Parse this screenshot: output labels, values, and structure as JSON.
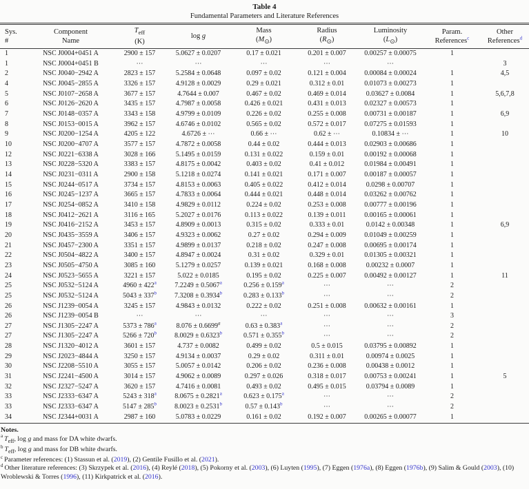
{
  "title": "Table 4",
  "subtitle": "Fundamental Parameters and Literature References",
  "header": {
    "cols": [
      {
        "l1": "Sys.",
        "l2": "#"
      },
      {
        "l1": "Component",
        "l2": "Name"
      },
      {
        "l1": "{Teff}",
        "l2": "(K)"
      },
      {
        "l1": "log {g}",
        "l2": ""
      },
      {
        "l1": "Mass",
        "l2": "({Msun})"
      },
      {
        "l1": "Radius",
        "l2": "({Rsun})"
      },
      {
        "l1": "Luminosity",
        "l2": "({Lsun})"
      },
      {
        "l1": "Param.",
        "l2": "References^c"
      },
      {
        "l1": "Other",
        "l2": "References^d"
      }
    ]
  },
  "rows": [
    [
      "1",
      "NSC J0004+0451 A",
      "2900 ± 157",
      "5.0627 ± 0.0207",
      "0.17 ± 0.021",
      "0.201 ± 0.007",
      "0.00257 ± 0.00075",
      "1",
      ""
    ],
    [
      "1",
      "NSC J0004+0451 B",
      "⋯",
      "⋯",
      "⋯",
      "⋯",
      "⋯",
      "",
      "3"
    ],
    [
      "2",
      "NSC J0040−2942 A",
      "2823 ± 157",
      "5.2584 ± 0.0648",
      "0.097 ± 0.02",
      "0.121 ± 0.004",
      "0.00084 ± 0.00024",
      "1",
      "4,5"
    ],
    [
      "4",
      "NSC J0045−2855 A",
      "3326 ± 157",
      "4.9128 ± 0.0029",
      "0.29 ± 0.021",
      "0.312 ± 0.01",
      "0.01073 ± 0.00273",
      "1",
      ""
    ],
    [
      "5",
      "NSC J0107−2658 A",
      "3677 ± 157",
      "4.7644 ± 0.007",
      "0.467 ± 0.02",
      "0.469 ± 0.014",
      "0.03627 ± 0.0084",
      "1",
      "5,6,7,8"
    ],
    [
      "6",
      "NSC J0126−2620 A",
      "3435 ± 157",
      "4.7987 ± 0.0058",
      "0.426 ± 0.021",
      "0.431 ± 0.013",
      "0.02327 ± 0.00573",
      "1",
      ""
    ],
    [
      "7",
      "NSC J0148−0357 A",
      "3343 ± 158",
      "4.9799 ± 0.0109",
      "0.226 ± 0.02",
      "0.255 ± 0.008",
      "0.00731 ± 0.00187",
      "1",
      "6,9"
    ],
    [
      "8",
      "NSC J0153−0015 A",
      "3962 ± 157",
      "4.6746 ± 0.0102",
      "0.565 ± 0.02",
      "0.572 ± 0.017",
      "0.07275 ± 0.01593",
      "1",
      ""
    ],
    [
      "9",
      "NSC J0200−1254 A",
      "4205 ± 122",
      "4.6726 ± ⋯",
      "0.66 ± ⋯",
      "0.62 ± ⋯",
      "0.10834 ± ⋯",
      "1",
      "10"
    ],
    [
      "10",
      "NSC J0200−4707 A",
      "3577 ± 157",
      "4.7872 ± 0.0058",
      "0.44 ± 0.02",
      "0.444 ± 0.013",
      "0.02903 ± 0.00686",
      "1",
      ""
    ],
    [
      "12",
      "NSC J0221−6338 A",
      "3028 ± 166",
      "5.1495 ± 0.0159",
      "0.131 ± 0.022",
      "0.159 ± 0.01",
      "0.00192 ± 0.00068",
      "1",
      ""
    ],
    [
      "13",
      "NSC J0228−5320 A",
      "3383 ± 157",
      "4.8175 ± 0.0042",
      "0.403 ± 0.02",
      "0.41 ± 0.012",
      "0.01984 ± 0.00491",
      "1",
      ""
    ],
    [
      "14",
      "NSC J0231−0311 A",
      "2900 ± 158",
      "5.1218 ± 0.0274",
      "0.141 ± 0.021",
      "0.171 ± 0.007",
      "0.00187 ± 0.00057",
      "1",
      ""
    ],
    [
      "15",
      "NSC J0244−0517 A",
      "3734 ± 157",
      "4.8153 ± 0.0063",
      "0.405 ± 0.022",
      "0.412 ± 0.014",
      "0.0298 ± 0.00707",
      "1",
      ""
    ],
    [
      "16",
      "NSC J0245−1237 A",
      "3665 ± 157",
      "4.7833 ± 0.0064",
      "0.444 ± 0.021",
      "0.448 ± 0.014",
      "0.03262 ± 0.00762",
      "1",
      ""
    ],
    [
      "17",
      "NSC J0254−0852 A",
      "3410 ± 158",
      "4.9829 ± 0.0112",
      "0.224 ± 0.02",
      "0.253 ± 0.008",
      "0.00777 ± 0.00196",
      "1",
      ""
    ],
    [
      "18",
      "NSC J0412−2621 A",
      "3116 ± 165",
      "5.2027 ± 0.0176",
      "0.113 ± 0.022",
      "0.139 ± 0.011",
      "0.00165 ± 0.00061",
      "1",
      ""
    ],
    [
      "19",
      "NSC J0416−2152 A",
      "3453 ± 157",
      "4.8909 ± 0.0013",
      "0.315 ± 0.02",
      "0.333 ± 0.01",
      "0.0142 ± 0.00348",
      "1",
      "6,9"
    ],
    [
      "20",
      "NSC J0435−3559 A",
      "3406 ± 157",
      "4.9323 ± 0.0062",
      "0.27 ± 0.02",
      "0.294 ± 0.009",
      "0.01049 ± 0.00259",
      "1",
      ""
    ],
    [
      "21",
      "NSC J0457−2300 A",
      "3351 ± 157",
      "4.9899 ± 0.0137",
      "0.218 ± 0.02",
      "0.247 ± 0.008",
      "0.00695 ± 0.00174",
      "1",
      ""
    ],
    [
      "22",
      "NSC J0504−4822 A",
      "3400 ± 157",
      "4.8947 ± 0.0024",
      "0.31 ± 0.02",
      "0.329 ± 0.01",
      "0.01305 ± 0.00321",
      "1",
      ""
    ],
    [
      "23",
      "NSC J0505−4750 A",
      "3085 ± 160",
      "5.1279 ± 0.0257",
      "0.139 ± 0.021",
      "0.168 ± 0.008",
      "0.00232 ± 0.0007",
      "1",
      ""
    ],
    [
      "24",
      "NSC J0523−5655 A",
      "3221 ± 157",
      "5.022 ± 0.0185",
      "0.195 ± 0.02",
      "0.225 ± 0.007",
      "0.00492 ± 0.00127",
      "1",
      "11"
    ],
    [
      "25",
      "NSC J0532−5124 A",
      "4960 ± 422^a",
      "7.2249 ± 0.5067^a",
      "0.256 ± 0.159^a",
      "⋯",
      "⋯",
      "2",
      ""
    ],
    [
      "25",
      "NSC J0532−5124 A",
      "5043 ± 337^b",
      "7.3208 ± 0.3934^b",
      "0.283 ± 0.133^b",
      "⋯",
      "⋯",
      "2",
      ""
    ],
    [
      "26",
      "NSC J1239−0054 A",
      "3245 ± 157",
      "4.9843 ± 0.0132",
      "0.222 ± 0.02",
      "0.251 ± 0.008",
      "0.00632 ± 0.00161",
      "1",
      ""
    ],
    [
      "26",
      "NSC J1239−0054 B",
      "⋯",
      "⋯",
      "⋯",
      "⋯",
      "⋯",
      "3",
      ""
    ],
    [
      "27",
      "NSC J1305−2247 A",
      "5373 ± 786^a",
      "8.076 ± 0.6699^!a",
      "0.63 ± 0.383^a",
      "⋯",
      "⋯",
      "2",
      ""
    ],
    [
      "27",
      "NSC J1305−2247 A",
      "5266 ± 720^b",
      "8.0029 ± 0.6323^b",
      "0.571 ± 0.355^b",
      "⋯",
      "⋯",
      "2",
      ""
    ],
    [
      "28",
      "NSC J1320−4012 A",
      "3601 ± 157",
      "4.737 ± 0.0082",
      "0.499 ± 0.02",
      "0.5 ± 0.015",
      "0.03795 ± 0.00892",
      "1",
      ""
    ],
    [
      "29",
      "NSC J2023−4844 A",
      "3250 ± 157",
      "4.9134 ± 0.0037",
      "0.29 ± 0.02",
      "0.311 ± 0.01",
      "0.00974 ± 0.0025",
      "1",
      ""
    ],
    [
      "30",
      "NSC J2208−5510 A",
      "3055 ± 157",
      "5.0057 ± 0.0142",
      "0.206 ± 0.02",
      "0.236 ± 0.008",
      "0.00438 ± 0.0012",
      "1",
      ""
    ],
    [
      "31",
      "NSC J2241−4500 A",
      "3014 ± 157",
      "4.9062 ± 0.0089",
      "0.297 ± 0.026",
      "0.318 ± 0.017",
      "0.00753 ± 0.00241",
      "1",
      "5"
    ],
    [
      "32",
      "NSC J2327−5247 A",
      "3620 ± 157",
      "4.7416 ± 0.0081",
      "0.493 ± 0.02",
      "0.495 ± 0.015",
      "0.03794 ± 0.0089",
      "1",
      ""
    ],
    [
      "33",
      "NSC J2333−6347 A",
      "5243 ± 318^a",
      "8.0675 ± 0.2821^a",
      "0.623 ± 0.175^a",
      "⋯",
      "⋯",
      "2",
      ""
    ],
    [
      "33",
      "NSC J2333−6347 A",
      "5147 ± 285^b",
      "8.0023 ± 0.2531^b",
      "0.57 ± 0.143^b",
      "⋯",
      "⋯",
      "2",
      ""
    ],
    [
      "34",
      "NSC J2344+0031 A",
      "2987 ± 160",
      "5.0783 ± 0.0229",
      "0.161 ± 0.02",
      "0.192 ± 0.007",
      "0.00265 ± 0.00077",
      "1",
      ""
    ]
  ],
  "notes": {
    "label": "Notes.",
    "items": [
      {
        "mark": "a",
        "text": "{Teff}, log {g} and mass for DA white dwarfs."
      },
      {
        "mark": "b",
        "text": "{Teff}, log {g} and mass for DB white dwarfs."
      },
      {
        "mark": "c",
        "text": "Parameter references: (1) Stassun et al. ([[2019]]), (2) Gentile Fusillo et al. ([[2021]])."
      },
      {
        "mark": "d",
        "text": "Other literature references: (3) Skrzypek et al. ([[2016]]), (4) Reylé ([[2018]]), (5) Pokorny et al. ([[2003]]), (6) Luyten ([[1995]]), (7) Eggen ([[1976a]]), (8) Eggen ([[1976b]]), (9) Salim & Gould ([[2003]]), (10) Wroblewski & Torres ([[1996]]), (11) Kirkpatrick et al. ([[2016]])."
      }
    ]
  },
  "colors": {
    "link_blue": "#3333cc",
    "rule": "#3a3a3a",
    "text": "#1a1a1a"
  }
}
